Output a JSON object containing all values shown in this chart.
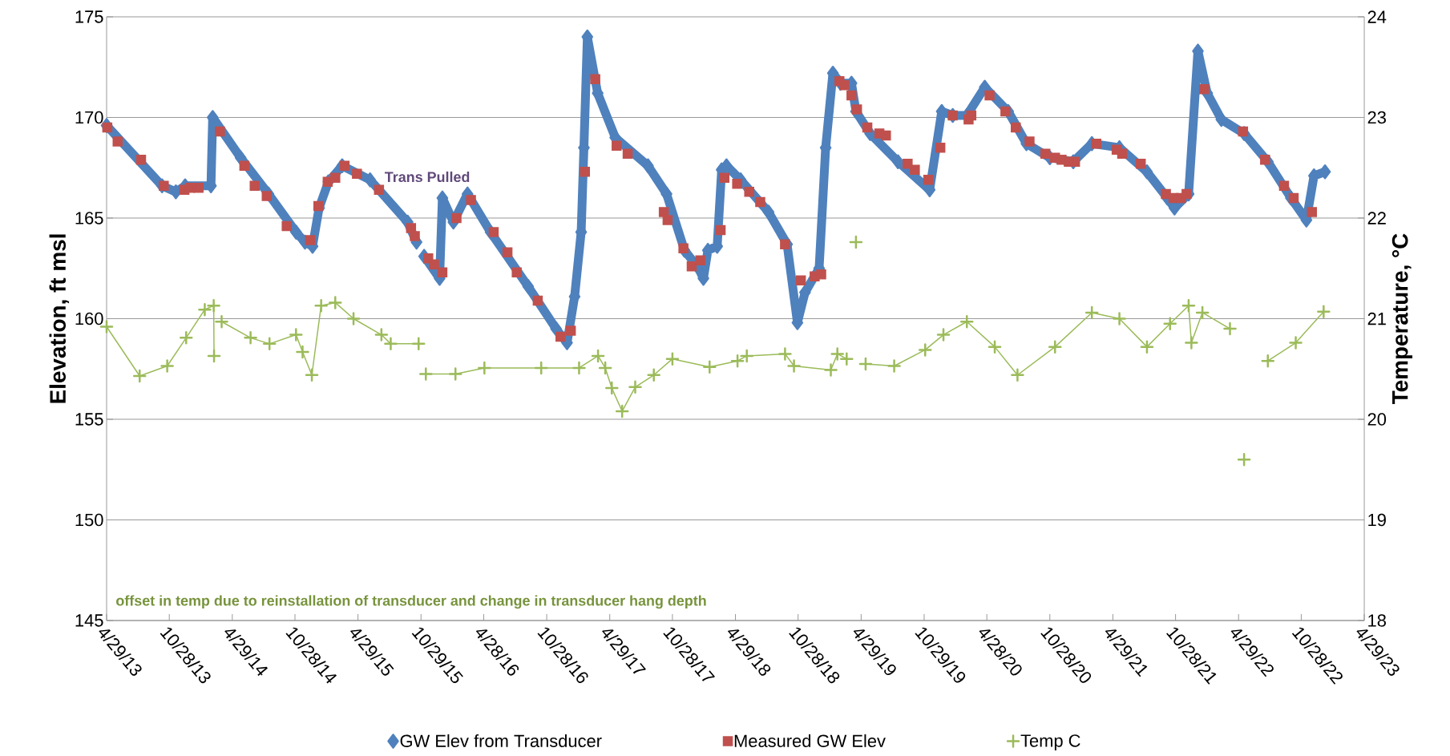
{
  "chart_data": {
    "type": "line",
    "ylabel": "Elevation, ft msl",
    "y2label": "Temperature, °C",
    "xlim": [
      "2013-04-29",
      "2023-04-29"
    ],
    "xticks": [
      {
        "value": "2013-04-29",
        "label": "4/29/13"
      },
      {
        "value": "2013-10-28",
        "label": "10/28/13"
      },
      {
        "value": "2014-04-29",
        "label": "4/29/14"
      },
      {
        "value": "2014-10-28",
        "label": "10/28/14"
      },
      {
        "value": "2015-04-29",
        "label": "4/29/15"
      },
      {
        "value": "2015-10-29",
        "label": "10/29/15"
      },
      {
        "value": "2016-04-28",
        "label": "4/28/16"
      },
      {
        "value": "2016-10-28",
        "label": "10/28/16"
      },
      {
        "value": "2017-04-29",
        "label": "4/29/17"
      },
      {
        "value": "2017-10-28",
        "label": "10/28/17"
      },
      {
        "value": "2018-04-29",
        "label": "4/29/18"
      },
      {
        "value": "2018-10-28",
        "label": "10/28/18"
      },
      {
        "value": "2019-04-29",
        "label": "4/29/19"
      },
      {
        "value": "2019-10-29",
        "label": "10/29/19"
      },
      {
        "value": "2020-04-28",
        "label": "4/28/20"
      },
      {
        "value": "2020-10-28",
        "label": "10/28/20"
      },
      {
        "value": "2021-04-29",
        "label": "4/29/21"
      },
      {
        "value": "2021-10-28",
        "label": "10/28/21"
      },
      {
        "value": "2022-04-29",
        "label": "4/29/22"
      },
      {
        "value": "2022-10-28",
        "label": "10/28/22"
      },
      {
        "value": "2023-04-29",
        "label": "4/29/23"
      }
    ],
    "ylim": [
      145,
      175
    ],
    "yticks": [
      145,
      150,
      155,
      160,
      165,
      170,
      175
    ],
    "y2lim": [
      18,
      24
    ],
    "y2ticks": [
      18,
      19,
      20,
      21,
      22,
      23,
      24
    ],
    "grid": "y",
    "legend": "bottom",
    "annotations": [
      "Trans Pulled",
      "offset in temp due to reinstallation of transducer and change in transducer hang depth"
    ],
    "series": [
      {
        "name": "GW Elev from Transducer",
        "marker": "diamond",
        "color": "#4f81bd",
        "x": [
          "2013-04-29",
          "2013-10-07",
          "2013-11-16",
          "2013-12-13",
          "2014-02-26",
          "2014-03-03",
          "2014-05-23",
          "2014-08-12",
          "2014-10-31",
          "2014-11-26",
          "2014-12-18",
          "2015-01-06",
          "2015-02-02",
          "2015-03-14",
          "2015-06-03",
          "2015-09-20",
          "2015-10-16",
          "2015-10-30",
          "2015-11-07",
          "2015-12-22",
          "2015-12-30",
          "2016-01-31",
          "2016-03-12",
          "2016-05-18",
          "2016-09-04",
          "2016-11-24",
          "2016-12-26",
          "2017-01-17",
          "2017-02-05",
          "2017-02-13",
          "2017-02-23",
          "2017-03-25",
          "2017-05-15",
          "2017-08-18",
          "2017-10-11",
          "2017-12-02",
          "2018-01-12",
          "2018-01-26",
          "2018-02-08",
          "2018-03-07",
          "2018-03-20",
          "2018-04-03",
          "2018-05-14",
          "2018-08-03",
          "2018-09-26",
          "2018-10-26",
          "2018-11-17",
          "2018-12-28",
          "2019-01-16",
          "2019-02-06",
          "2019-02-28",
          "2019-04-01",
          "2019-04-14",
          "2019-05-25",
          "2019-08-14",
          "2019-11-14",
          "2019-12-19",
          "2020-01-20",
          "2020-03-01",
          "2020-04-22",
          "2020-06-29",
          "2020-08-21",
          "2020-10-28",
          "2021-01-04",
          "2021-02-27",
          "2021-05-18",
          "2021-08-06",
          "2021-10-04",
          "2021-10-25",
          "2021-12-05",
          "2022-01-01",
          "2022-01-28",
          "2022-03-10",
          "2022-05-15",
          "2022-07-23",
          "2022-09-28",
          "2022-11-12",
          "2022-12-04",
          "2023-01-05"
        ],
        "values": [
          169.6,
          166.6,
          166.3,
          166.6,
          166.6,
          170.0,
          168.0,
          166.2,
          164.3,
          163.8,
          163.6,
          165.5,
          166.8,
          167.6,
          166.9,
          164.8,
          163.8,
          null,
          163.1,
          162.0,
          166.0,
          164.8,
          166.2,
          164.3,
          161.6,
          159.5,
          158.8,
          161.1,
          164.3,
          168.5,
          174.0,
          171.2,
          169.0,
          167.6,
          166.2,
          163.4,
          162.5,
          162.0,
          163.4,
          163.6,
          167.4,
          167.6,
          166.9,
          165.3,
          163.7,
          159.8,
          161.3,
          162.5,
          168.5,
          172.2,
          171.7,
          171.7,
          170.3,
          169.2,
          167.8,
          166.4,
          170.3,
          170.1,
          170.1,
          171.5,
          170.3,
          168.7,
          168.0,
          167.8,
          168.7,
          168.5,
          167.3,
          166.0,
          165.5,
          166.2,
          173.3,
          171.2,
          169.9,
          169.2,
          167.8,
          166.0,
          164.9,
          167.1,
          167.3
        ]
      },
      {
        "name": "Measured GW Elev",
        "type": "scatter",
        "marker": "square",
        "color": "#c0504d",
        "x": [
          "2013-05-01",
          "2013-05-31",
          "2013-08-07",
          "2013-10-12",
          "2013-12-11",
          "2013-12-27",
          "2014-01-21",
          "2014-03-24",
          "2014-06-03",
          "2014-07-03",
          "2014-08-07",
          "2014-10-04",
          "2014-12-11",
          "2015-01-04",
          "2015-01-31",
          "2015-02-22",
          "2015-03-21",
          "2015-04-26",
          "2015-06-29",
          "2015-09-30",
          "2015-10-11",
          "2015-11-19",
          "2015-12-06",
          "2015-12-30",
          "2016-02-09",
          "2016-03-22",
          "2016-05-27",
          "2016-07-06",
          "2016-08-02",
          "2016-10-02",
          "2016-12-07",
          "2017-01-06",
          "2017-02-16",
          "2017-03-18",
          "2017-05-19",
          "2017-06-20",
          "2017-10-03",
          "2017-10-14",
          "2017-11-29",
          "2017-12-23",
          "2018-01-17",
          "2018-03-17",
          "2018-03-28",
          "2018-05-04",
          "2018-06-08",
          "2018-07-10",
          "2018-09-20",
          "2018-11-05",
          "2018-12-15",
          "2019-01-03",
          "2019-02-25",
          "2019-03-11",
          "2019-04-01",
          "2019-04-17",
          "2019-05-17",
          "2019-06-21",
          "2019-07-10",
          "2019-09-11",
          "2019-10-02",
          "2019-11-10",
          "2019-12-15",
          "2020-01-20",
          "2020-03-06",
          "2020-03-14",
          "2020-05-06",
          "2020-06-21",
          "2020-07-21",
          "2020-08-30",
          "2020-10-15",
          "2020-11-12",
          "2020-12-01",
          "2020-12-22",
          "2021-01-09",
          "2021-03-12",
          "2021-05-10",
          "2021-05-26",
          "2021-07-19",
          "2021-09-30",
          "2021-10-22",
          "2021-11-13",
          "2021-11-29",
          "2022-01-19",
          "2022-05-12",
          "2022-07-15",
          "2022-09-08",
          "2022-10-06",
          "2022-11-28"
        ],
        "values": [
          169.5,
          168.8,
          167.9,
          166.6,
          166.4,
          166.5,
          166.5,
          169.3,
          167.6,
          166.6,
          166.1,
          164.6,
          163.9,
          165.6,
          166.8,
          167.0,
          167.6,
          167.2,
          166.4,
          164.5,
          164.1,
          163.0,
          162.7,
          162.3,
          165.0,
          165.9,
          164.3,
          163.3,
          162.3,
          160.9,
          159.1,
          159.4,
          167.3,
          171.9,
          168.6,
          168.2,
          165.3,
          164.9,
          163.5,
          162.6,
          162.9,
          164.4,
          167.0,
          166.7,
          166.3,
          165.8,
          163.7,
          161.9,
          162.1,
          162.2,
          171.8,
          171.6,
          171.1,
          170.4,
          169.5,
          169.2,
          169.1,
          167.7,
          167.4,
          166.9,
          168.5,
          170.1,
          169.9,
          170.1,
          171.1,
          170.3,
          169.5,
          168.8,
          168.2,
          168.0,
          167.9,
          167.8,
          167.8,
          168.7,
          168.4,
          168.2,
          167.7,
          166.2,
          166.0,
          166.0,
          166.2,
          171.4,
          169.3,
          167.9,
          166.6,
          166.0,
          165.3
        ]
      },
      {
        "name": "Temp C",
        "marker": "cross",
        "axis": "y2",
        "color": "#9bbb59",
        "x": [
          "2013-04-29",
          "2013-08-03",
          "2013-10-22",
          "2013-12-16",
          "2014-02-08",
          "2014-03-06",
          "2014-03-07",
          "2014-03-08",
          "2014-03-29",
          "2014-06-21",
          "2014-08-15",
          "2014-10-31",
          "2014-11-19",
          "2014-12-16",
          "2015-01-12",
          "2015-02-22",
          "2015-04-16",
          "2015-07-06",
          "2015-08-02",
          "2015-10-22",
          "2015-10-30",
          "2015-11-12",
          "2016-02-06",
          "2016-04-30",
          "2016-10-12",
          "2017-01-30",
          "2017-03-26",
          "2017-04-16",
          "2017-05-05",
          "2017-06-04",
          "2017-07-12",
          "2017-09-04",
          "2017-10-28",
          "2018-02-13",
          "2018-05-05",
          "2018-06-01",
          "2018-09-20",
          "2018-10-16",
          "2019-01-31",
          "2019-02-19",
          "2019-03-18",
          "2019-04-10",
          "2019-04-14",
          "2019-04-18",
          "2019-05-12",
          "2019-08-03",
          "2019-11-01",
          "2019-12-24",
          "2020-03-01",
          "2020-05-21",
          "2020-07-26",
          "2020-11-12",
          "2021-02-27",
          "2021-05-18",
          "2021-08-06",
          "2021-10-12",
          "2021-12-05",
          "2021-12-13",
          "2022-01-14",
          "2022-04-04",
          "2022-05-10",
          "2022-05-15",
          "2022-05-20",
          "2022-07-23",
          "2022-10-12",
          "2023-01-01"
        ],
        "values": [
          20.92,
          20.43,
          20.53,
          20.81,
          21.09,
          21.13,
          20.63,
          null,
          20.97,
          20.81,
          20.75,
          20.84,
          20.67,
          20.44,
          21.13,
          21.16,
          21.0,
          20.84,
          20.75,
          20.75,
          null,
          20.45,
          20.45,
          20.51,
          20.51,
          20.51,
          20.63,
          20.51,
          20.31,
          20.08,
          20.32,
          20.44,
          20.6,
          20.52,
          20.58,
          20.63,
          20.65,
          20.53,
          20.49,
          20.65,
          20.6,
          null,
          21.76,
          null,
          20.55,
          20.53,
          20.69,
          20.84,
          20.97,
          20.72,
          20.44,
          20.72,
          21.06,
          21.0,
          20.72,
          20.95,
          21.13,
          20.76,
          21.06,
          20.9,
          null,
          19.6,
          null,
          20.58,
          20.76,
          21.07
        ]
      }
    ]
  }
}
